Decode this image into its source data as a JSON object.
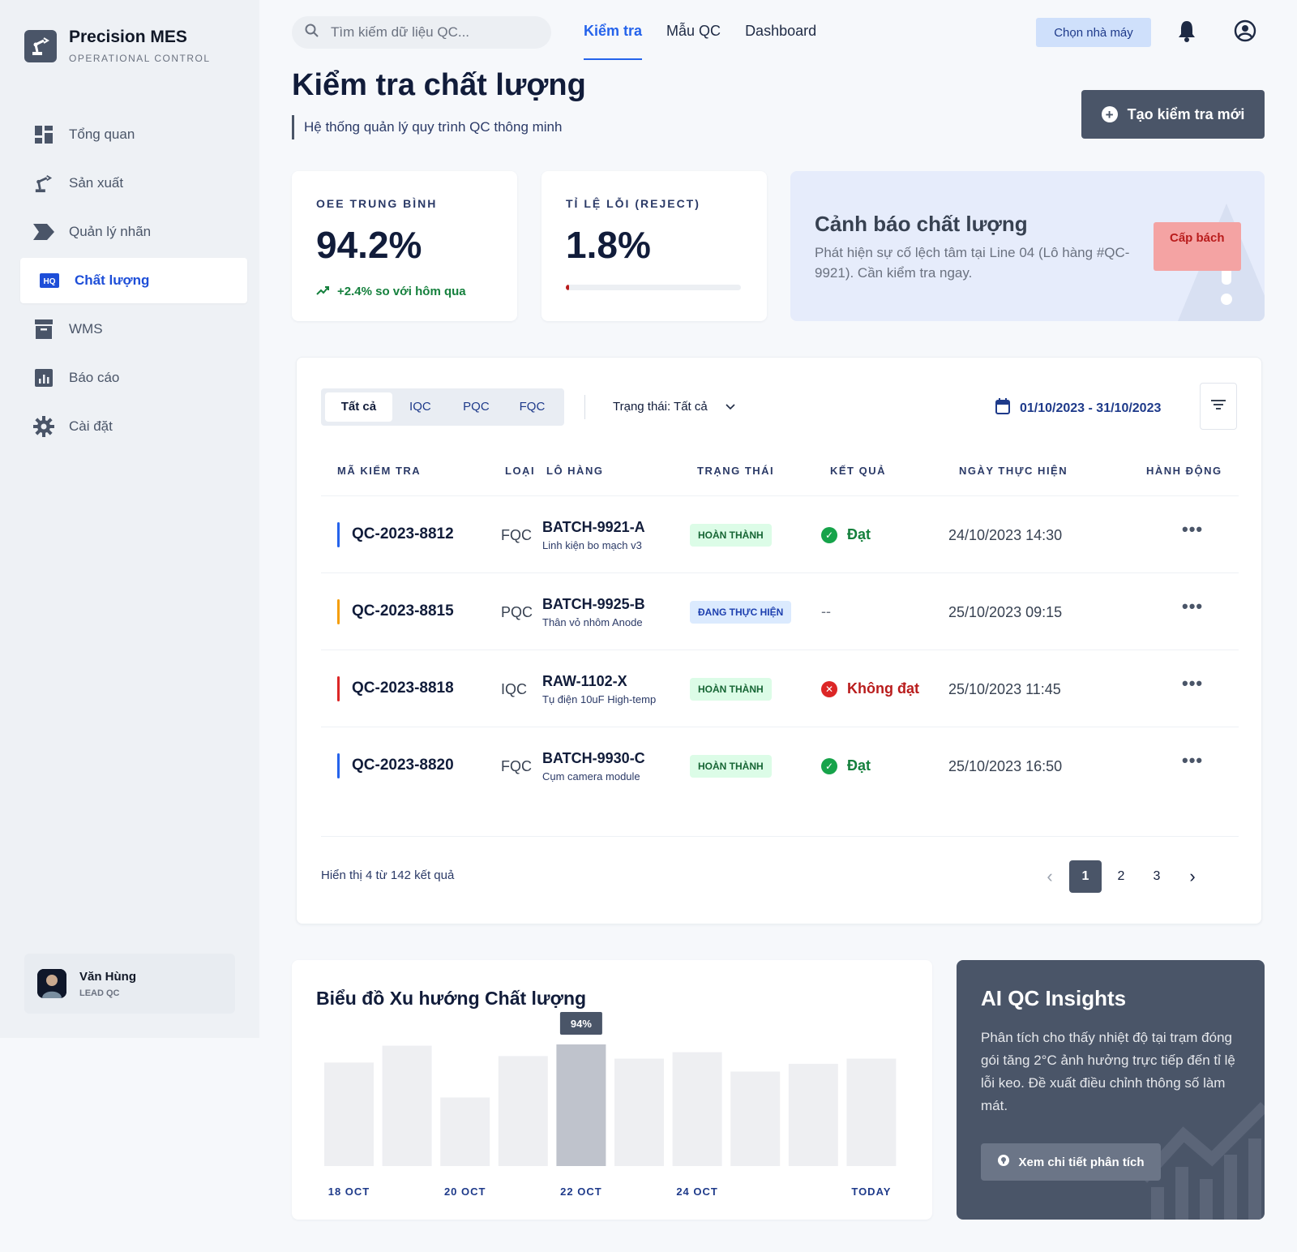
{
  "brand": {
    "name": "Precision MES",
    "subtitle": "OPERATIONAL CONTROL"
  },
  "sidebar": {
    "items": [
      {
        "label": "Tổng quan",
        "icon": "dashboard-icon"
      },
      {
        "label": "Sản xuất",
        "icon": "robot-arm-icon"
      },
      {
        "label": "Quản lý nhãn",
        "icon": "label-icon"
      },
      {
        "label": "Chất lượng",
        "icon": "hq-icon",
        "active": true
      },
      {
        "label": "WMS",
        "icon": "inventory-icon"
      },
      {
        "label": "Báo cáo",
        "icon": "report-icon"
      },
      {
        "label": "Cài đặt",
        "icon": "gear-icon"
      }
    ],
    "hq_text": "HQ",
    "user": {
      "name": "Văn Hùng",
      "role": "LEAD QC"
    }
  },
  "topbar": {
    "search_placeholder": "Tìm kiếm dữ liệu QC...",
    "tabs": [
      {
        "label": "Kiểm tra",
        "active": true
      },
      {
        "label": "Mẫu QC"
      },
      {
        "label": "Dashboard"
      }
    ],
    "factory_button": "Chọn nhà máy"
  },
  "header": {
    "title": "Kiểm tra chất lượng",
    "subtitle": "Hệ thống quản lý quy trình QC thông minh",
    "create_button": "Tạo kiểm tra mới"
  },
  "stats": {
    "oee": {
      "label": "OEE TRUNG BÌNH",
      "value": "94.2%",
      "trend": "+2.4% so với hôm qua"
    },
    "reject": {
      "label": "TỈ LỆ LỖI (REJECT)",
      "value": "1.8%",
      "fraction": 0.018
    }
  },
  "alert": {
    "title": "Cảnh báo chất lượng",
    "text": "Phát hiện sự cố lệch tâm tại Line 04 (Lô hàng #QC-9921). Cần kiểm tra ngay.",
    "badge": "Cấp bách"
  },
  "table": {
    "segments": [
      "Tất cả",
      "IQC",
      "PQC",
      "FQC"
    ],
    "status_filter": "Trạng thái: Tất cả",
    "date_range": "01/10/2023 - 31/10/2023",
    "columns": [
      "MÃ KIỂM TRA",
      "LOẠI",
      "LÔ HÀNG",
      "TRẠNG THÁI",
      "KẾT QUẢ",
      "NGÀY THỰC HIỆN",
      "HÀNH ĐỘNG"
    ],
    "rows": [
      {
        "id": "QC-2023-8812",
        "type": "FQC",
        "batch": "BATCH-9921-A",
        "desc": "Linh kiện bo mạch v3",
        "status": "HOÀN THÀNH",
        "result": "Đạt",
        "date": "24/10/2023 14:30",
        "color": "#2563eb"
      },
      {
        "id": "QC-2023-8815",
        "type": "PQC",
        "batch": "BATCH-9925-B",
        "desc": "Thân vỏ nhôm Anode",
        "status": "ĐANG THỰC HIỆN",
        "result": "--",
        "date": "25/10/2023 09:15",
        "color": "#f59e0b"
      },
      {
        "id": "QC-2023-8818",
        "type": "IQC",
        "batch": "RAW-1102-X",
        "desc": "Tụ điện 10uF High-temp",
        "status": "HOÀN THÀNH",
        "result": "Không đạt",
        "date": "25/10/2023 11:45",
        "color": "#dc2626"
      },
      {
        "id": "QC-2023-8820",
        "type": "FQC",
        "batch": "BATCH-9930-C",
        "desc": "Cụm camera module",
        "status": "HOÀN THÀNH",
        "result": "Đạt",
        "date": "25/10/2023 16:50",
        "color": "#2563eb"
      }
    ],
    "more_label": "•••",
    "footer": "Hiển thị 4 từ 142 kết quả",
    "pages": [
      "1",
      "2",
      "3"
    ],
    "current_page": "1"
  },
  "chart_data": {
    "type": "bar",
    "title": "Biểu đồ Xu hướng Chất lượng",
    "categories": [
      "18 OCT",
      "",
      "20 OCT",
      "",
      "22 OCT",
      "",
      "24 OCT",
      "",
      "",
      "TODAY"
    ],
    "values": [
      80,
      93,
      53,
      85,
      94,
      83,
      88,
      73,
      79,
      83
    ],
    "highlight_index": 4,
    "highlight_label": "94%",
    "tick_labels": [
      "18 OCT",
      "20 OCT",
      "22 OCT",
      "24 OCT",
      "TODAY"
    ],
    "colors": {
      "bar": "#eeeff2",
      "highlight": "#bfc3cc",
      "tooltip": "#4a5568"
    }
  },
  "ai": {
    "title": "AI QC Insights",
    "text": "Phân tích cho thấy nhiệt độ tại trạm đóng gói tăng 2°C ảnh hưởng trực tiếp đến tỉ lệ lỗi keo. Đề xuất điều chỉnh thông số làm mát.",
    "button": "Xem chi tiết phân tích"
  }
}
